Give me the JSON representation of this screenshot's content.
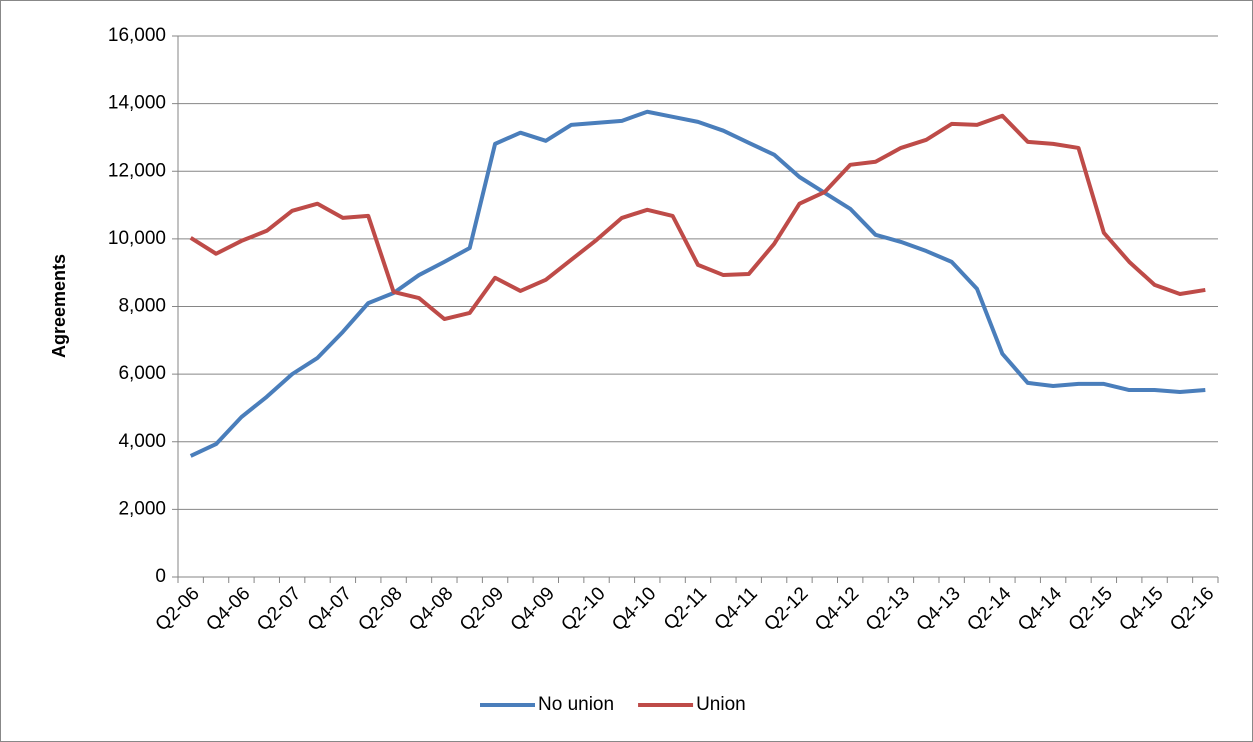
{
  "chart_data": {
    "type": "line",
    "y_label": "Agreements",
    "categories": [
      "Q2-06",
      null,
      "Q4-06",
      null,
      "Q2-07",
      null,
      "Q4-07",
      null,
      "Q2-08",
      null,
      "Q4-08",
      null,
      "Q2-09",
      null,
      "Q4-09",
      null,
      "Q2-10",
      null,
      "Q4-10",
      null,
      "Q2-11",
      null,
      "Q4-11",
      null,
      "Q2-12",
      null,
      "Q4-12",
      null,
      "Q2-13",
      null,
      "Q4-13",
      null,
      "Q2-14",
      null,
      "Q4-14",
      null,
      "Q2-15",
      null,
      "Q4-15",
      null,
      "Q2-16"
    ],
    "series": [
      {
        "name": "No union",
        "color": "#4a7ebb",
        "values": [
          3580,
          3930,
          4730,
          5330,
          6000,
          6480,
          7250,
          8100,
          8400,
          8930,
          9320,
          9730,
          12810,
          13140,
          12900,
          13370,
          13430,
          13490,
          13760,
          13610,
          13460,
          13200,
          12840,
          12490,
          11830,
          11360,
          10890,
          10120,
          9910,
          9640,
          9320,
          8520,
          6600,
          5740,
          5650,
          5710,
          5710,
          5530,
          5530,
          5470,
          5530
        ]
      },
      {
        "name": "Union",
        "color": "#be4b48",
        "values": [
          10030,
          9560,
          9940,
          10240,
          10830,
          11040,
          10620,
          10680,
          8430,
          8250,
          7630,
          7810,
          8850,
          8460,
          8790,
          9380,
          9970,
          10620,
          10860,
          10680,
          9230,
          8930,
          8960,
          9850,
          11040,
          11390,
          12190,
          12280,
          12690,
          12930,
          13400,
          13370,
          13640,
          12870,
          12810,
          12690,
          10180,
          9320,
          8640,
          8370,
          8490
        ]
      }
    ],
    "ylim": [
      0,
      16000
    ],
    "yticks": [
      0,
      {
        "value": 2000,
        "label": "2,000"
      },
      {
        "value": 4000,
        "label": "4,000"
      },
      {
        "value": 6000,
        "label": "6,000"
      },
      {
        "value": 8000,
        "label": "8,000"
      },
      {
        "value": 10000,
        "label": "10,000"
      },
      {
        "value": 12000,
        "label": "12,000"
      },
      {
        "value": 14000,
        "label": "14,000"
      },
      {
        "value": 16000,
        "label": "16,000"
      }
    ],
    "grid": true,
    "legend": "bottom"
  }
}
